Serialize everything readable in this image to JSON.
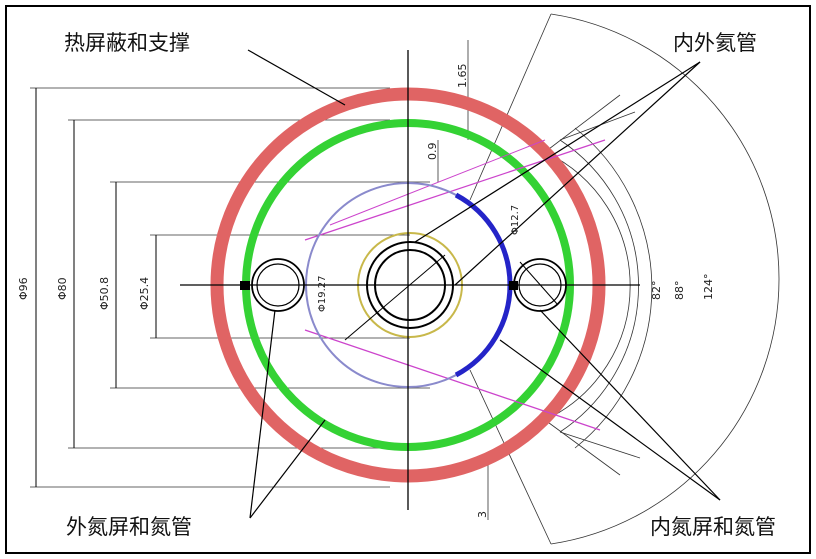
{
  "labels": {
    "heat_shield": "热屏蔽和支撑",
    "inner_outer_helium": "内外氦管",
    "outer_nitrogen": "外氮屏和氮管",
    "inner_nitrogen": "内氮屏和氮管"
  },
  "dimensions": {
    "d96": "Φ96",
    "d80": "Φ80",
    "d50_8": "Φ50.8",
    "d25_4": "Φ25.4",
    "t1_65": "1.65",
    "t0_9": "0.9",
    "d12_7": "Φ12.7",
    "d19_27": "Φ19.27",
    "t3": "3",
    "a82": "82°",
    "a88": "88°",
    "a124": "124°"
  },
  "colors": {
    "heat_shield": "#e06464",
    "outer_nitrogen_shield": "#34d234",
    "inner_nitrogen_arc": "#2424c8",
    "inner_nitrogen_ring": "#8a8acc",
    "helium_ring": "#c8b84a",
    "support_line": "#cc44cc"
  }
}
